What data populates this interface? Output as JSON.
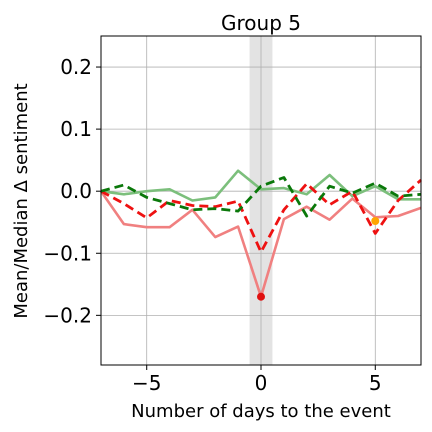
{
  "chart_data": {
    "type": "line",
    "title": "Group 5",
    "xlabel": "Number of days to the event",
    "ylabel": "Mean/Median Δ sentiment",
    "xlim": [
      -7,
      7
    ],
    "ylim": [
      -0.28,
      0.25
    ],
    "grid": true,
    "x_ticks": [
      -5,
      0,
      5
    ],
    "x_tick_labels": [
      "−5",
      "0",
      "5"
    ],
    "y_ticks": [
      0.2,
      0.1,
      0.0,
      -0.1,
      -0.2
    ],
    "y_tick_labels": [
      "0.2",
      "0.1",
      "0.0",
      "−0.1",
      "−0.2"
    ],
    "shaded_region": {
      "x_start": -0.5,
      "x_end": 0.5,
      "color": "#d9d9d9"
    },
    "x": [
      -7,
      -6,
      -5,
      -4,
      -3,
      -2,
      -1,
      0,
      1,
      2,
      3,
      4,
      5,
      6,
      7
    ],
    "series": [
      {
        "values": [
          0.0,
          -0.053,
          -0.058,
          -0.058,
          -0.03,
          -0.074,
          -0.057,
          -0.17,
          -0.045,
          -0.025,
          -0.046,
          -0.012,
          -0.042,
          -0.04,
          -0.027
        ],
        "color": "#f08080",
        "style": "solid"
      },
      {
        "values": [
          0.0,
          -0.005,
          0.0,
          0.003,
          -0.015,
          -0.01,
          0.033,
          0.003,
          0.005,
          -0.005,
          0.026,
          -0.008,
          0.008,
          -0.013,
          -0.013
        ],
        "color": "#7cbf7c",
        "style": "solid"
      },
      {
        "values": [
          0.0,
          -0.02,
          -0.043,
          -0.015,
          -0.023,
          -0.025,
          -0.016,
          -0.098,
          -0.03,
          0.012,
          -0.022,
          0.0,
          -0.068,
          -0.015,
          0.018
        ],
        "color": "#ee1111",
        "style": "dashed"
      },
      {
        "values": [
          0.0,
          0.01,
          -0.01,
          -0.02,
          -0.03,
          -0.028,
          -0.032,
          0.008,
          0.022,
          -0.04,
          0.008,
          -0.003,
          0.013,
          -0.008,
          -0.005
        ],
        "color": "#0a780a",
        "style": "dashed"
      }
    ],
    "markers": [
      {
        "x": 0,
        "y": -0.17,
        "color": "#e01010"
      },
      {
        "x": 5,
        "y": -0.048,
        "color": "#ffa500"
      }
    ]
  }
}
